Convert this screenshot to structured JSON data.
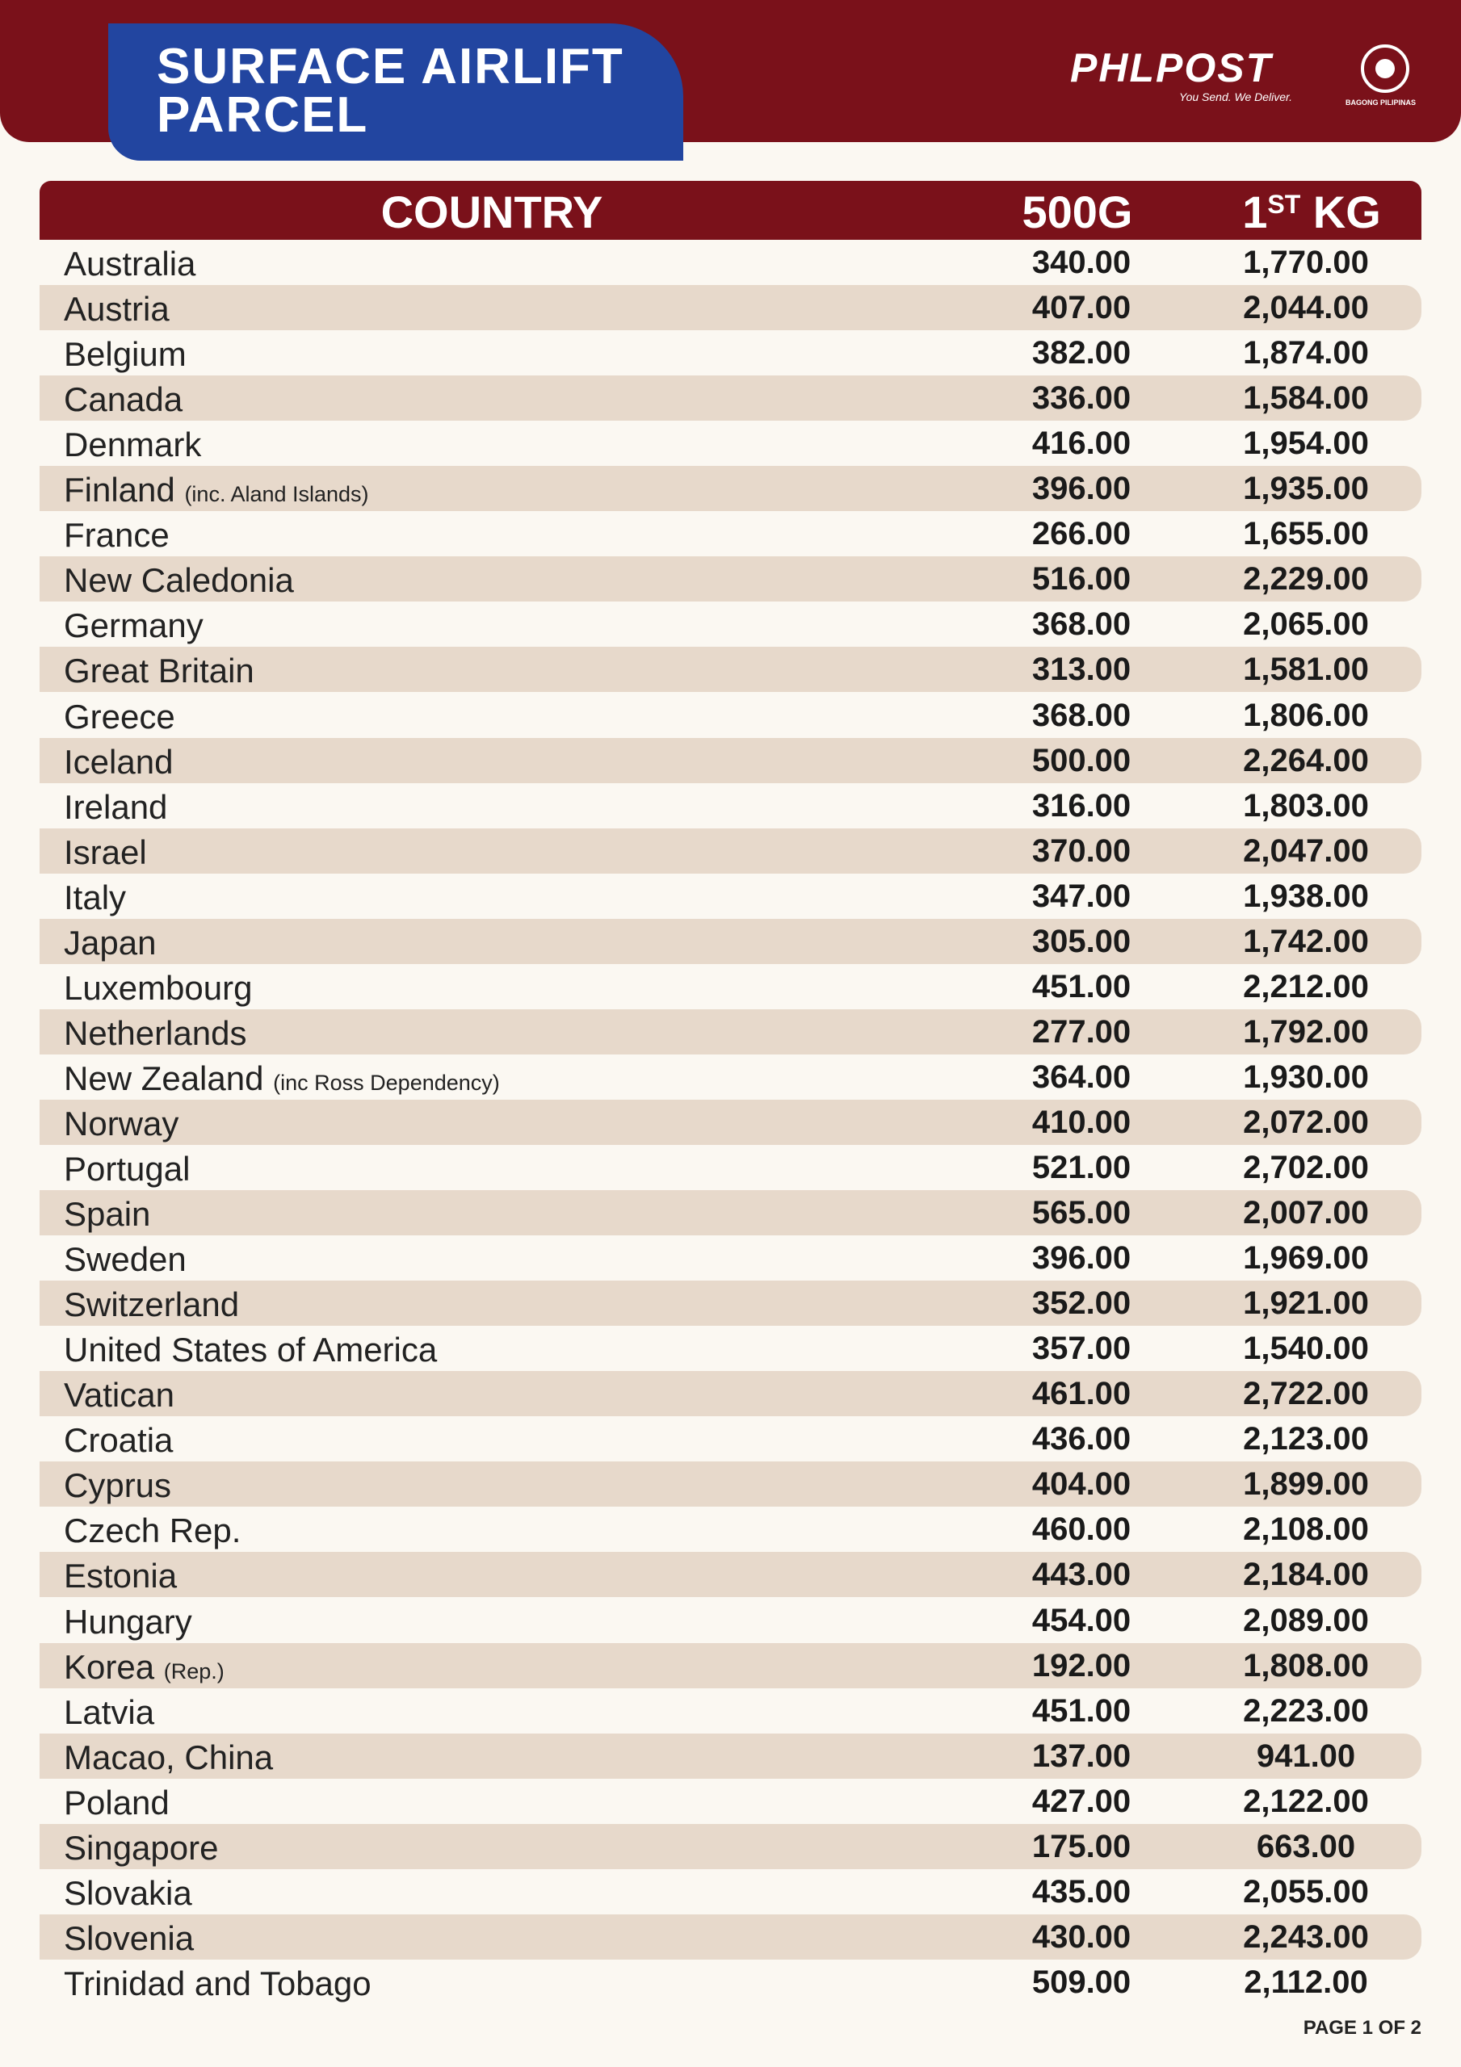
{
  "header": {
    "title_line1": "SURFACE AIRLIFT",
    "title_line2": "PARCEL",
    "logo": "PHLPOST",
    "tagline": "You Send. We Deliver.",
    "seal_text": "BAGONG PILIPINAS"
  },
  "table": {
    "columns": {
      "country": "COUNTRY",
      "g500": "500G",
      "kg_main": "1",
      "kg_sup": "ST",
      "kg_tail": "KG"
    },
    "rows": [
      {
        "country": "Australia",
        "g500": "340.00",
        "kg1": "1,770.00"
      },
      {
        "country": "Austria",
        "g500": "407.00",
        "kg1": "2,044.00"
      },
      {
        "country": "Belgium",
        "g500": "382.00",
        "kg1": "1,874.00"
      },
      {
        "country": "Canada",
        "g500": "336.00",
        "kg1": "1,584.00"
      },
      {
        "country": "Denmark",
        "g500": "416.00",
        "kg1": "1,954.00"
      },
      {
        "country": "Finland",
        "note": "(inc. Aland Islands)",
        "g500": "396.00",
        "kg1": "1,935.00"
      },
      {
        "country": "France",
        "g500": "266.00",
        "kg1": "1,655.00"
      },
      {
        "country": "New Caledonia",
        "g500": "516.00",
        "kg1": "2,229.00"
      },
      {
        "country": "Germany",
        "g500": "368.00",
        "kg1": "2,065.00"
      },
      {
        "country": "Great Britain",
        "g500": "313.00",
        "kg1": "1,581.00"
      },
      {
        "country": "Greece",
        "g500": "368.00",
        "kg1": "1,806.00"
      },
      {
        "country": "Iceland",
        "g500": "500.00",
        "kg1": "2,264.00"
      },
      {
        "country": "Ireland",
        "g500": "316.00",
        "kg1": "1,803.00"
      },
      {
        "country": "Israel",
        "g500": "370.00",
        "kg1": "2,047.00"
      },
      {
        "country": "Italy",
        "g500": "347.00",
        "kg1": "1,938.00"
      },
      {
        "country": "Japan",
        "g500": "305.00",
        "kg1": "1,742.00"
      },
      {
        "country": "Luxembourg",
        "g500": "451.00",
        "kg1": "2,212.00"
      },
      {
        "country": "Netherlands",
        "g500": "277.00",
        "kg1": "1,792.00"
      },
      {
        "country": "New Zealand",
        "note": "(inc Ross Dependency)",
        "g500": "364.00",
        "kg1": "1,930.00"
      },
      {
        "country": "Norway",
        "g500": "410.00",
        "kg1": "2,072.00"
      },
      {
        "country": "Portugal",
        "g500": "521.00",
        "kg1": "2,702.00"
      },
      {
        "country": "Spain",
        "g500": "565.00",
        "kg1": "2,007.00"
      },
      {
        "country": "Sweden",
        "g500": "396.00",
        "kg1": "1,969.00"
      },
      {
        "country": "Switzerland",
        "g500": "352.00",
        "kg1": "1,921.00"
      },
      {
        "country": "United States of America",
        "g500": "357.00",
        "kg1": "1,540.00"
      },
      {
        "country": "Vatican",
        "g500": "461.00",
        "kg1": "2,722.00"
      },
      {
        "country": "Croatia",
        "g500": "436.00",
        "kg1": "2,123.00"
      },
      {
        "country": "Cyprus",
        "g500": "404.00",
        "kg1": "1,899.00"
      },
      {
        "country": "Czech Rep.",
        "g500": "460.00",
        "kg1": "2,108.00"
      },
      {
        "country": "Estonia",
        "g500": "443.00",
        "kg1": "2,184.00"
      },
      {
        "country": "Hungary",
        "g500": "454.00",
        "kg1": "2,089.00"
      },
      {
        "country": "Korea",
        "note": "(Rep.)",
        "g500": "192.00",
        "kg1": "1,808.00"
      },
      {
        "country": "Latvia",
        "g500": "451.00",
        "kg1": "2,223.00"
      },
      {
        "country": "Macao, China",
        "g500": "137.00",
        "kg1": "941.00"
      },
      {
        "country": "Poland",
        "g500": "427.00",
        "kg1": "2,122.00"
      },
      {
        "country": "Singapore",
        "g500": "175.00",
        "kg1": "663.00"
      },
      {
        "country": "Slovakia",
        "g500": "435.00",
        "kg1": "2,055.00"
      },
      {
        "country": "Slovenia",
        "g500": "430.00",
        "kg1": "2,243.00"
      },
      {
        "country": "Trinidad and Tobago",
        "g500": "509.00",
        "kg1": "2,112.00"
      }
    ]
  },
  "footer": {
    "page": "PAGE 1 OF 2"
  }
}
